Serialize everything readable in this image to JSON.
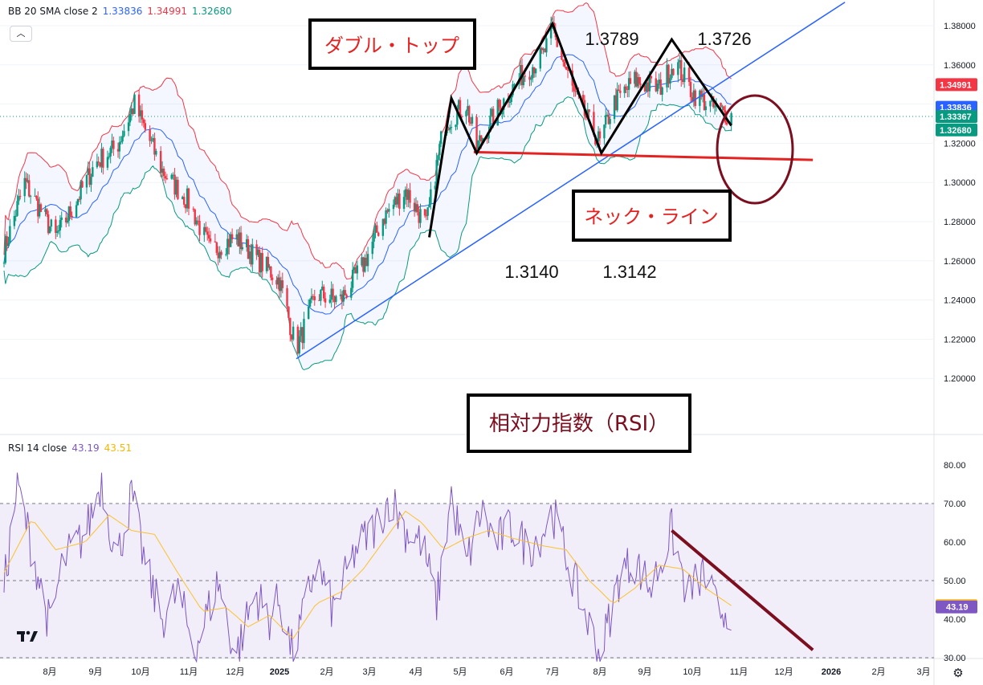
{
  "header": {
    "bb": {
      "label": "BB 20 SMA close 2",
      "basis": "1.33836",
      "upper": "1.34991",
      "lower": "1.32680",
      "basis_color": "#2962ff",
      "upper_color": "#f23645",
      "lower_color": "#089981"
    },
    "rsi": {
      "label": "RSI 14 close",
      "rsi_value": "43.19",
      "ma_value": "43.51",
      "rsi_color": "#7e57c2",
      "ma_color": "#fbc02d"
    }
  },
  "collapse_icon": "chevron-up-icon",
  "settings_icon": "gear-icon",
  "chart_data": [
    {
      "type": "candlestick",
      "title": "",
      "ylim": [
        1.19,
        1.39
      ],
      "y_ticks": [
        "1.38000",
        "1.36000",
        "1.34000",
        "1.32000",
        "1.30000",
        "1.28000",
        "1.26000",
        "1.24000",
        "1.22000",
        "1.20000"
      ],
      "x_ticks": [
        "8月",
        "9月",
        "10月",
        "11月",
        "12月",
        "2025",
        "2月",
        "3月",
        "4月",
        "5月",
        "6月",
        "7月",
        "8月",
        "9月",
        "10月",
        "11月",
        "12月",
        "2026",
        "2月",
        "3月"
      ],
      "price_tags": [
        {
          "label": "1.34991",
          "value": 1.34991,
          "color": "#f23645"
        },
        {
          "label": "1.33836",
          "value": 1.33836,
          "color": "#2962ff"
        },
        {
          "label": "1.33367",
          "value": 1.33367,
          "color": "#089981"
        },
        {
          "label": "1.32680",
          "value": 1.3268,
          "color": "#089981"
        }
      ],
      "close_path": [
        [
          "2024-07-01",
          1.265
        ],
        [
          "2024-07-15",
          1.3
        ],
        [
          "2024-08-05",
          1.272
        ],
        [
          "2024-08-15",
          1.285
        ],
        [
          "2024-09-01",
          1.31
        ],
        [
          "2024-09-15",
          1.318
        ],
        [
          "2024-09-27",
          1.34
        ],
        [
          "2024-10-15",
          1.306
        ],
        [
          "2024-11-01",
          1.29
        ],
        [
          "2024-11-15",
          1.265
        ],
        [
          "2024-12-01",
          1.272
        ],
        [
          "2024-12-15",
          1.262
        ],
        [
          "2025-01-01",
          1.25
        ],
        [
          "2025-01-12",
          1.215
        ],
        [
          "2025-01-25",
          1.243
        ],
        [
          "2025-02-10",
          1.24
        ],
        [
          "2025-02-25",
          1.258
        ],
        [
          "2025-03-10",
          1.282
        ],
        [
          "2025-03-25",
          1.296
        ],
        [
          "2025-04-08",
          1.278
        ],
        [
          "2025-04-20",
          1.33
        ],
        [
          "2025-05-05",
          1.34
        ],
        [
          "2025-05-12",
          1.318
        ],
        [
          "2025-05-25",
          1.336
        ],
        [
          "2025-06-10",
          1.354
        ],
        [
          "2025-06-25",
          1.365
        ],
        [
          "2025-07-01",
          1.378
        ],
        [
          "2025-07-15",
          1.345
        ],
        [
          "2025-08-01",
          1.32
        ],
        [
          "2025-08-10",
          1.34
        ],
        [
          "2025-08-25",
          1.352
        ],
        [
          "2025-09-10",
          1.348
        ],
        [
          "2025-09-20",
          1.362
        ],
        [
          "2025-10-01",
          1.346
        ],
        [
          "2025-10-15",
          1.338
        ],
        [
          "2025-10-27",
          1.334
        ]
      ],
      "annotations": {
        "double_top_label": "ダブル・トップ",
        "neckline_label": "ネック・ライン",
        "peak1": "1.3789",
        "peak2": "1.3726",
        "trough1": "1.3140",
        "trough2": "1.3142",
        "double_top_points": [
          [
            "2025-04-10",
            1.272
          ],
          [
            "2025-04-25",
            1.343
          ],
          [
            "2025-05-12",
            1.315
          ],
          [
            "2025-07-01",
            1.381
          ],
          [
            "2025-08-02",
            1.315
          ],
          [
            "2025-09-18",
            1.373
          ],
          [
            "2025-10-27",
            1.329
          ]
        ],
        "neckline_points": [
          [
            "2025-05-10",
            1.3155
          ],
          [
            "2025-12-20",
            1.3115
          ]
        ],
        "trendline_points": [
          [
            "2025-01-12",
            1.21
          ],
          [
            "2026-01-10",
            1.392
          ]
        ]
      }
    },
    {
      "type": "line",
      "title": "",
      "ylim": [
        28,
        82
      ],
      "y_ticks": [
        "80.00",
        "70.00",
        "60.00",
        "50.00",
        "40.00",
        "30.00"
      ],
      "bands": [
        70,
        50,
        30
      ],
      "series": [
        {
          "name": "RSI",
          "color": "#7e57c2",
          "last": 43.19
        },
        {
          "name": "MA",
          "color": "#fbc02d",
          "last": 43.51
        }
      ],
      "rsi_path": [
        [
          "2024-07-01",
          48
        ],
        [
          "2024-07-10",
          75
        ],
        [
          "2024-07-20",
          58
        ],
        [
          "2024-08-01",
          38
        ],
        [
          "2024-08-10",
          55
        ],
        [
          "2024-08-25",
          62
        ],
        [
          "2024-09-05",
          76
        ],
        [
          "2024-09-15",
          55
        ],
        [
          "2024-09-25",
          72
        ],
        [
          "2024-10-05",
          52
        ],
        [
          "2024-10-15",
          40
        ],
        [
          "2024-10-25",
          47
        ],
        [
          "2024-11-05",
          32
        ],
        [
          "2024-11-20",
          50
        ],
        [
          "2024-12-01",
          30
        ],
        [
          "2024-12-15",
          47
        ],
        [
          "2024-12-25",
          40
        ],
        [
          "2025-01-01",
          45
        ],
        [
          "2025-01-10",
          30
        ],
        [
          "2025-01-25",
          55
        ],
        [
          "2025-02-05",
          42
        ],
        [
          "2025-02-20",
          58
        ],
        [
          "2025-03-05",
          64
        ],
        [
          "2025-03-15",
          72
        ],
        [
          "2025-03-25",
          63
        ],
        [
          "2025-04-05",
          60
        ],
        [
          "2025-04-15",
          44
        ],
        [
          "2025-04-25",
          72
        ],
        [
          "2025-05-05",
          54
        ],
        [
          "2025-05-15",
          68
        ],
        [
          "2025-05-25",
          60
        ],
        [
          "2025-06-05",
          64
        ],
        [
          "2025-06-15",
          58
        ],
        [
          "2025-06-25",
          63
        ],
        [
          "2025-07-01",
          68
        ],
        [
          "2025-07-15",
          50
        ],
        [
          "2025-08-01",
          30
        ],
        [
          "2025-08-15",
          52
        ],
        [
          "2025-08-25",
          55
        ],
        [
          "2025-09-05",
          48
        ],
        [
          "2025-09-18",
          63
        ],
        [
          "2025-09-28",
          46
        ],
        [
          "2025-10-08",
          52
        ],
        [
          "2025-10-18",
          42
        ],
        [
          "2025-10-27",
          43
        ]
      ],
      "ma_path": [
        [
          "2024-07-01",
          52
        ],
        [
          "2024-07-20",
          66
        ],
        [
          "2024-08-05",
          58
        ],
        [
          "2024-08-25",
          60
        ],
        [
          "2024-09-10",
          67
        ],
        [
          "2024-09-25",
          63
        ],
        [
          "2024-10-10",
          62
        ],
        [
          "2024-10-25",
          52
        ],
        [
          "2024-11-10",
          42
        ],
        [
          "2024-11-25",
          43
        ],
        [
          "2024-12-10",
          38
        ],
        [
          "2024-12-25",
          41
        ],
        [
          "2025-01-10",
          35
        ],
        [
          "2025-01-25",
          44
        ],
        [
          "2025-02-10",
          47
        ],
        [
          "2025-02-25",
          53
        ],
        [
          "2025-03-10",
          60
        ],
        [
          "2025-03-25",
          68
        ],
        [
          "2025-04-05",
          65
        ],
        [
          "2025-04-20",
          58
        ],
        [
          "2025-05-05",
          61
        ],
        [
          "2025-05-20",
          63
        ],
        [
          "2025-06-05",
          61
        ],
        [
          "2025-06-25",
          59
        ],
        [
          "2025-07-10",
          58
        ],
        [
          "2025-07-25",
          50
        ],
        [
          "2025-08-10",
          44
        ],
        [
          "2025-08-25",
          48
        ],
        [
          "2025-09-10",
          54
        ],
        [
          "2025-09-25",
          53
        ],
        [
          "2025-10-10",
          48
        ],
        [
          "2025-10-27",
          43.5
        ]
      ],
      "annotations": {
        "title_box": "相対力指数（RSI）",
        "downtrend_points": [
          [
            "2025-09-18",
            63
          ],
          [
            "2025-12-20",
            32
          ]
        ]
      }
    }
  ]
}
